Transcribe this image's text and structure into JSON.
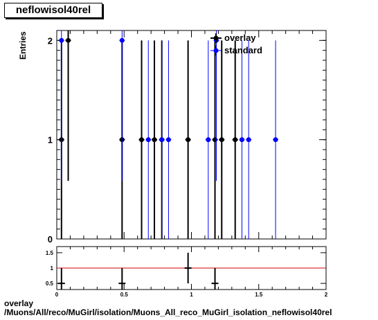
{
  "title": "neflowisol40rel",
  "footer": {
    "line1": "overlay",
    "line2": "/Muons/All/reco/MuGirl/isolation/Muons_All_reco_MuGirl_isolation_neflowisol40rel"
  },
  "colors": {
    "overlay": "#000000",
    "standard": "#0000ff",
    "ratio_line": "#cc0000"
  },
  "chart_data": [
    {
      "type": "scatter",
      "title": "neflowisol40rel",
      "ylabel": "Entries",
      "xlim": [
        0,
        2
      ],
      "ylim": [
        0,
        2.1
      ],
      "yticks": [
        "0",
        "1",
        "2"
      ],
      "legend": "top-right",
      "series": [
        {
          "name": "overlay",
          "color": "#000000",
          "points": [
            {
              "x": 0.035,
              "y": 1
            },
            {
              "x": 0.085,
              "y": 2
            },
            {
              "x": 0.485,
              "y": 1
            },
            {
              "x": 0.63,
              "y": 1
            },
            {
              "x": 0.725,
              "y": 1
            },
            {
              "x": 0.78,
              "y": 1
            },
            {
              "x": 0.975,
              "y": 1
            },
            {
              "x": 1.175,
              "y": 1
            },
            {
              "x": 1.225,
              "y": 1
            },
            {
              "x": 1.325,
              "y": 1
            }
          ]
        },
        {
          "name": "standard",
          "color": "#0000ff",
          "points": [
            {
              "x": 0.035,
              "y": 2
            },
            {
              "x": 0.485,
              "y": 2
            },
            {
              "x": 0.68,
              "y": 1
            },
            {
              "x": 0.78,
              "y": 1
            },
            {
              "x": 0.83,
              "y": 1
            },
            {
              "x": 1.125,
              "y": 1
            },
            {
              "x": 1.185,
              "y": 2
            },
            {
              "x": 1.375,
              "y": 1
            },
            {
              "x": 1.425,
              "y": 1
            },
            {
              "x": 1.625,
              "y": 1
            }
          ]
        }
      ]
    },
    {
      "type": "scatter",
      "xlim": [
        0,
        2
      ],
      "ylim": [
        0.3,
        1.7
      ],
      "xticks": [
        "0",
        "0.5",
        "1",
        "1.5",
        "2"
      ],
      "yticks": [
        "0.5",
        "1",
        "1.5"
      ],
      "reference_line": 1,
      "points": [
        {
          "x": 0.035,
          "y": 0.5
        },
        {
          "x": 0.485,
          "y": 0.5
        },
        {
          "x": 0.975,
          "y": 1.0
        },
        {
          "x": 1.175,
          "y": 0.5
        }
      ]
    }
  ]
}
